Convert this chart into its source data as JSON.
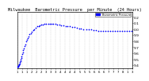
{
  "title": "Milwaukee  Barometric Pressure  per Minute  (24 Hours)",
  "title_fontsize": 3.8,
  "background_color": "#ffffff",
  "top_bar_color": "#404040",
  "plot_color": "blue",
  "grid_color": "#cccccc",
  "ylim": [
    29.35,
    30.28
  ],
  "xlim": [
    0,
    1440
  ],
  "ylabel_fontsize": 3.2,
  "xlabel_fontsize": 2.8,
  "yticks": [
    29.4,
    29.5,
    29.6,
    29.7,
    29.8,
    29.9,
    30.0,
    30.1,
    30.2
  ],
  "ytick_labels": [
    "9.4",
    "9.5",
    "9.6",
    "9.7",
    "9.8",
    "9.9",
    "0.0",
    "0.1",
    "0.2"
  ],
  "xtick_positions": [
    0,
    60,
    120,
    180,
    240,
    300,
    360,
    420,
    480,
    540,
    600,
    660,
    720,
    780,
    840,
    900,
    960,
    1020,
    1080,
    1140,
    1200,
    1260,
    1320,
    1380,
    1440
  ],
  "xtick_labels": [
    "1",
    "1",
    "1",
    "2",
    "2",
    "2",
    "3",
    "3",
    "3",
    "4",
    "4",
    "4",
    "4",
    "5",
    "5",
    "5",
    "6",
    "6",
    "6",
    "7",
    "7",
    "7",
    "8",
    "1",
    "3"
  ],
  "data_x": [
    2,
    5,
    8,
    11,
    14,
    17,
    20,
    24,
    28,
    32,
    36,
    41,
    46,
    51,
    57,
    63,
    70,
    77,
    85,
    93,
    102,
    112,
    122,
    133,
    145,
    157,
    170,
    184,
    199,
    215,
    231,
    248,
    266,
    284,
    303,
    323,
    343,
    364,
    385,
    407,
    430,
    453,
    477,
    501,
    526,
    551,
    577,
    603,
    630,
    657,
    685,
    713,
    742,
    771,
    800,
    830,
    860,
    890,
    920,
    950,
    980,
    1010,
    1040,
    1070,
    1100,
    1130,
    1160,
    1190,
    1220,
    1250,
    1280,
    1310,
    1340,
    1370,
    1400,
    1430
  ],
  "data_y": [
    29.37,
    29.37,
    29.38,
    29.38,
    29.39,
    29.39,
    29.4,
    29.41,
    29.42,
    29.43,
    29.45,
    29.47,
    29.49,
    29.52,
    29.55,
    29.58,
    29.61,
    29.65,
    29.68,
    29.72,
    29.75,
    29.79,
    29.82,
    29.85,
    29.88,
    29.91,
    29.93,
    29.96,
    29.98,
    30.0,
    30.02,
    30.04,
    30.05,
    30.06,
    30.07,
    30.07,
    30.08,
    30.08,
    30.08,
    30.08,
    30.08,
    30.08,
    30.08,
    30.07,
    30.07,
    30.06,
    30.06,
    30.05,
    30.05,
    30.04,
    30.03,
    30.03,
    30.02,
    30.01,
    30.01,
    30.0,
    30.0,
    29.99,
    29.99,
    29.98,
    29.98,
    29.97,
    29.97,
    29.97,
    29.97,
    29.97,
    29.97,
    29.97,
    29.97,
    29.97,
    29.97,
    29.97,
    29.97,
    29.97,
    29.97,
    29.97
  ],
  "legend_label": "Barometric Pressure",
  "legend_color": "blue",
  "marker_size": 0.7,
  "dot_size": 1.5
}
